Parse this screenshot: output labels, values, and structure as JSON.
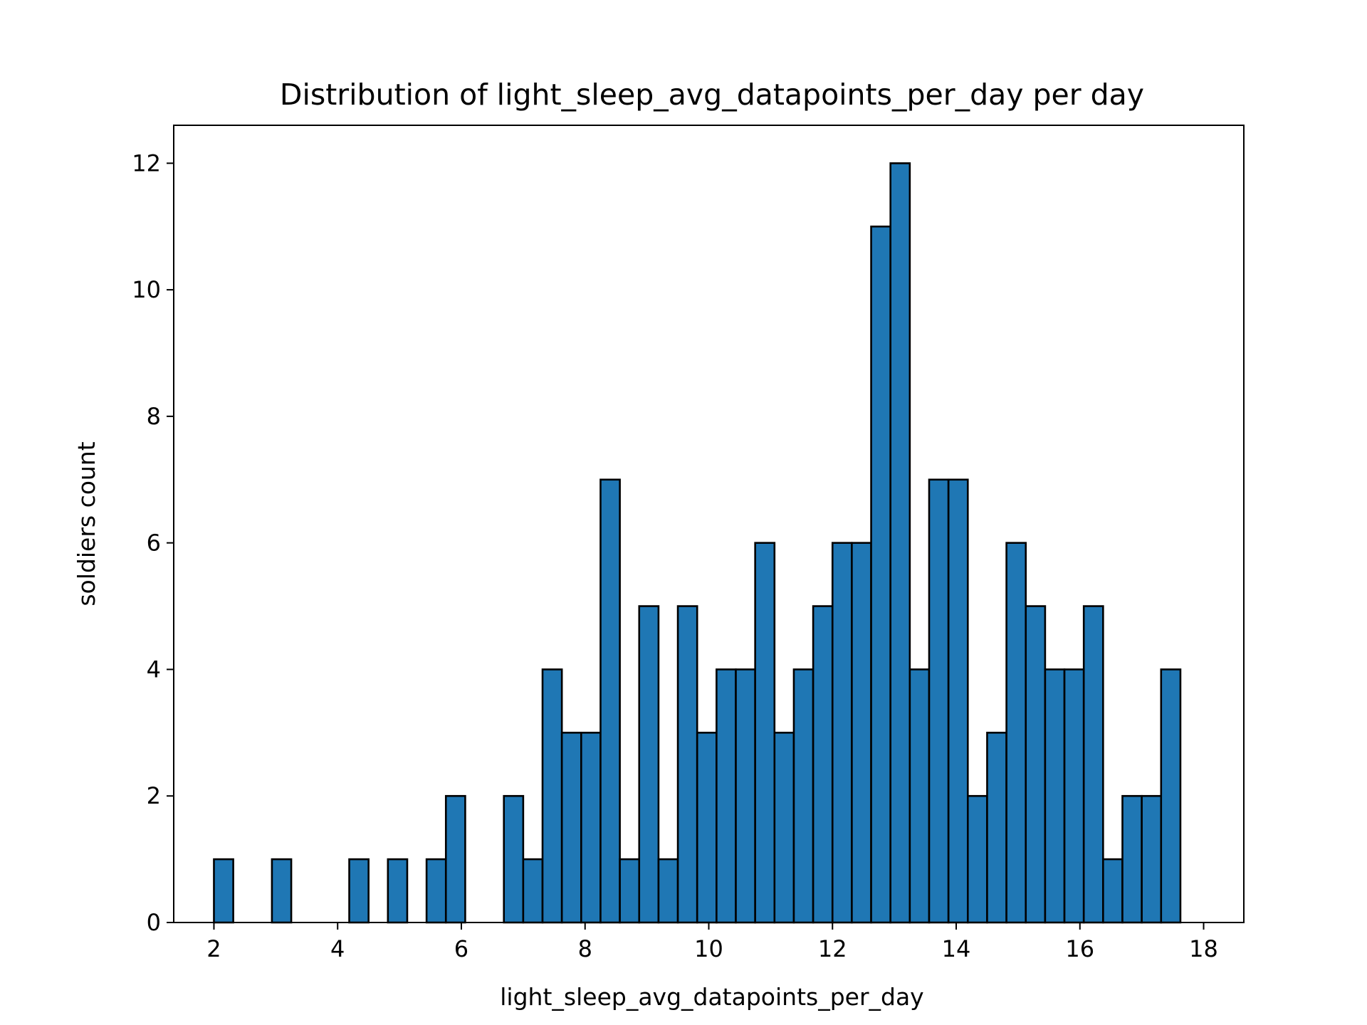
{
  "chart_data": {
    "type": "bar",
    "title": "Distribution of light_sleep_avg_datapoints_per_day per day",
    "xlabel": "light_sleep_avg_datapoints_per_day",
    "ylabel": "soldiers count",
    "xlim": [
      1.35,
      18.65
    ],
    "ylim": [
      0,
      12.6
    ],
    "bin_start": 2.0,
    "bin_width": 0.3125,
    "x_ticks": [
      "2",
      "4",
      "6",
      "8",
      "10",
      "12",
      "14",
      "16",
      "18"
    ],
    "y_ticks": [
      "0",
      "2",
      "4",
      "6",
      "8",
      "10",
      "12"
    ],
    "values": [
      1,
      0,
      0,
      1,
      0,
      0,
      0,
      1,
      0,
      1,
      0,
      1,
      2,
      0,
      0,
      2,
      1,
      4,
      3,
      3,
      7,
      1,
      5,
      1,
      5,
      3,
      4,
      4,
      6,
      3,
      4,
      5,
      6,
      6,
      11,
      12,
      4,
      7,
      7,
      2,
      3,
      6,
      5,
      4,
      4,
      5,
      1,
      2,
      2,
      4
    ],
    "bar_color": "#1f77b4",
    "edge_color": "#000000",
    "grid": false,
    "legend": "none"
  }
}
